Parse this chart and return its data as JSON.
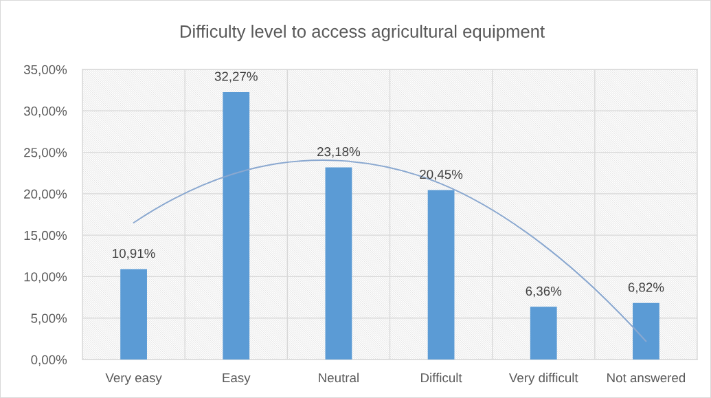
{
  "chart_data": {
    "type": "bar",
    "title": "Difficulty level to access agricultural equipment",
    "categories": [
      "Very easy",
      "Easy",
      "Neutral",
      "Difficult",
      "Very difficult",
      "Not answered"
    ],
    "series": [
      {
        "color": "#5b9bd5",
        "values": [
          10.91,
          32.27,
          23.18,
          20.45,
          6.36,
          6.82
        ],
        "value_labels": [
          "10,91%",
          "32,27%",
          "23,18%",
          "20,45%",
          "6,36%",
          "6,82%"
        ]
      },
      {
        "type": "line",
        "color": "#8aa8d0",
        "values": [
          16.5,
          22.5,
          24.0,
          21.2,
          13.8,
          2.2
        ]
      }
    ],
    "ylim": [
      0,
      35
    ],
    "yticks": [
      {
        "value": 0,
        "label": "0,00%"
      },
      {
        "value": 5,
        "label": "5,00%"
      },
      {
        "value": 10,
        "label": "10,00%"
      },
      {
        "value": 15,
        "label": "15,00%"
      },
      {
        "value": 20,
        "label": "20,00%"
      },
      {
        "value": 25,
        "label": "25,00%"
      },
      {
        "value": 30,
        "label": "30,00%"
      },
      {
        "value": 35,
        "label": "35,00%"
      }
    ],
    "grid": true
  }
}
